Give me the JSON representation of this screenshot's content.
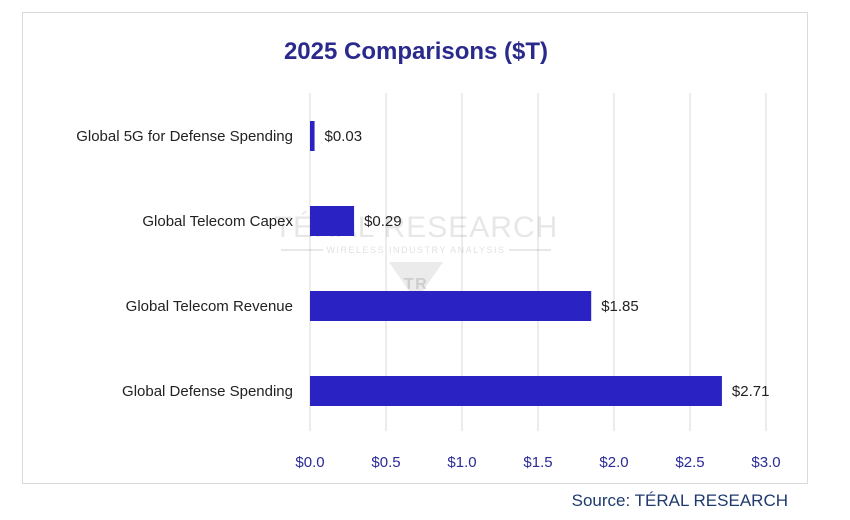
{
  "chart_data": {
    "type": "bar",
    "orientation": "horizontal",
    "title": "2025 Comparisons ($T)",
    "categories": [
      "Global 5G for Defense Spending",
      "Global Telecom Capex",
      "Global Telecom Revenue",
      "Global Defense Spending"
    ],
    "values": [
      0.03,
      0.29,
      1.85,
      2.71
    ],
    "value_labels": [
      "$0.03",
      "$0.29",
      "$1.85",
      "$2.71"
    ],
    "xlim": [
      0,
      3.0
    ],
    "xticks": [
      0,
      0.5,
      1.0,
      1.5,
      2.0,
      2.5,
      3.0
    ],
    "xtick_labels": [
      "$0.0",
      "$0.5",
      "$1.0",
      "$1.5",
      "$2.0",
      "$2.5",
      "$3.0"
    ],
    "grid": "vertical",
    "bar_color": "#2b22c4",
    "gridline_color": "#d9d9d9"
  },
  "watermark": {
    "name": "TÉRAL RESEARCH",
    "tagline": "WIRELESS INDUSTRY ANALYSIS",
    "monogram": "TR"
  },
  "source": "Source: TÉRAL RESEARCH"
}
